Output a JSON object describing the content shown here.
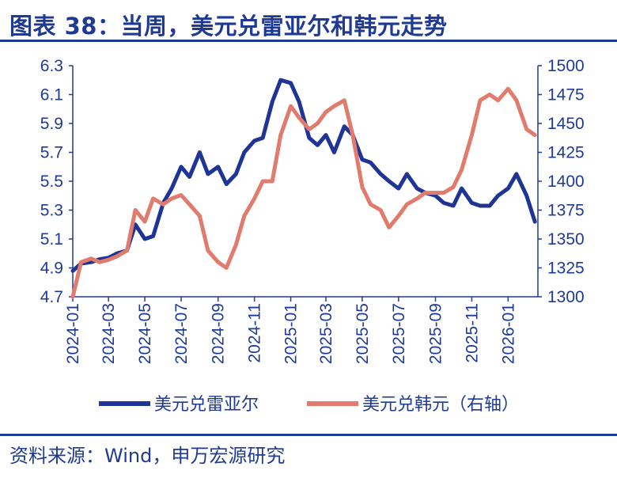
{
  "header": {
    "title": "图表 38：当周，美元兑雷亚尔和韩元走势"
  },
  "footer": {
    "source": "资料来源：Wind，申万宏源研究"
  },
  "chart_data": {
    "type": "line",
    "x_ticks": [
      "2024-01",
      "2024-03",
      "2024-05",
      "2024-07",
      "2024-09",
      "2024-11",
      "2025-01",
      "2025-03",
      "2025-05",
      "2025-07",
      "2025-09",
      "2025-11",
      "2026-01"
    ],
    "x_range": [
      "2024-01-01",
      "2026-02-20"
    ],
    "left_axis": {
      "ticks": [
        "6.3",
        "6.1",
        "5.9",
        "5.7",
        "5.5",
        "5.3",
        "5.1",
        "4.9",
        "4.7"
      ],
      "range": [
        4.7,
        6.3
      ]
    },
    "right_axis": {
      "ticks": [
        "1500",
        "1475",
        "1450",
        "1425",
        "1400",
        "1375",
        "1350",
        "1325",
        "1300"
      ],
      "range": [
        1300,
        1500
      ]
    },
    "grid": false,
    "legend_position": "bottom",
    "colors": {
      "brl": "#1f3596",
      "krw": "#e07b6e",
      "axis": "#1f3a93"
    },
    "series": [
      {
        "name": "美元兑雷亚尔",
        "axis": "left",
        "x": [
          "2024-01-01",
          "2024-01-15",
          "2024-02-01",
          "2024-02-15",
          "2024-03-01",
          "2024-03-15",
          "2024-04-01",
          "2024-04-15",
          "2024-05-01",
          "2024-05-15",
          "2024-06-01",
          "2024-06-15",
          "2024-07-01",
          "2024-07-15",
          "2024-08-01",
          "2024-08-15",
          "2024-09-01",
          "2024-09-15",
          "2024-10-01",
          "2024-10-15",
          "2024-11-01",
          "2024-11-15",
          "2024-12-01",
          "2024-12-15",
          "2025-01-01",
          "2025-01-15",
          "2025-02-01",
          "2025-02-15",
          "2025-03-01",
          "2025-03-15",
          "2025-04-01",
          "2025-04-15",
          "2025-05-01",
          "2025-05-15",
          "2025-06-01",
          "2025-06-15",
          "2025-07-01",
          "2025-07-15",
          "2025-08-01",
          "2025-08-15",
          "2025-09-01",
          "2025-09-15",
          "2025-10-01",
          "2025-10-15",
          "2025-11-01",
          "2025-11-15",
          "2025-12-01",
          "2025-12-15",
          "2026-01-01",
          "2026-01-15",
          "2026-02-01",
          "2026-02-15"
        ],
        "values": [
          4.88,
          4.93,
          4.94,
          4.96,
          4.97,
          5.0,
          5.02,
          5.2,
          5.1,
          5.12,
          5.35,
          5.45,
          5.6,
          5.53,
          5.7,
          5.55,
          5.6,
          5.48,
          5.55,
          5.7,
          5.78,
          5.8,
          6.05,
          6.2,
          6.18,
          6.05,
          5.8,
          5.75,
          5.82,
          5.7,
          5.88,
          5.82,
          5.65,
          5.63,
          5.55,
          5.5,
          5.45,
          5.55,
          5.45,
          5.42,
          5.4,
          5.35,
          5.33,
          5.45,
          5.35,
          5.33,
          5.33,
          5.4,
          5.45,
          5.55,
          5.4,
          5.22
        ]
      },
      {
        "name": "美元兑韩元",
        "axis": "right",
        "x": [
          "2024-01-01",
          "2024-01-15",
          "2024-02-01",
          "2024-02-15",
          "2024-03-01",
          "2024-03-15",
          "2024-04-01",
          "2024-04-15",
          "2024-05-01",
          "2024-05-15",
          "2024-06-01",
          "2024-06-15",
          "2024-07-01",
          "2024-07-15",
          "2024-08-01",
          "2024-08-15",
          "2024-09-01",
          "2024-09-15",
          "2024-10-01",
          "2024-10-15",
          "2024-11-01",
          "2024-11-15",
          "2024-12-01",
          "2024-12-15",
          "2025-01-01",
          "2025-01-15",
          "2025-02-01",
          "2025-02-15",
          "2025-03-01",
          "2025-03-15",
          "2025-04-01",
          "2025-04-15",
          "2025-05-01",
          "2025-05-15",
          "2025-06-01",
          "2025-06-15",
          "2025-07-01",
          "2025-07-15",
          "2025-08-01",
          "2025-08-15",
          "2025-09-01",
          "2025-09-15",
          "2025-10-01",
          "2025-10-15",
          "2025-11-01",
          "2025-11-15",
          "2025-12-01",
          "2025-12-15",
          "2026-01-01",
          "2026-01-15",
          "2026-02-01",
          "2026-02-15"
        ],
        "values": [
          1300,
          1330,
          1333,
          1330,
          1332,
          1335,
          1340,
          1375,
          1365,
          1385,
          1380,
          1385,
          1388,
          1380,
          1370,
          1340,
          1330,
          1325,
          1345,
          1370,
          1385,
          1400,
          1400,
          1440,
          1465,
          1455,
          1445,
          1450,
          1460,
          1465,
          1470,
          1440,
          1395,
          1380,
          1375,
          1360,
          1370,
          1380,
          1385,
          1390,
          1390,
          1390,
          1395,
          1410,
          1440,
          1470,
          1475,
          1470,
          1480,
          1470,
          1445,
          1440
        ]
      }
    ]
  }
}
